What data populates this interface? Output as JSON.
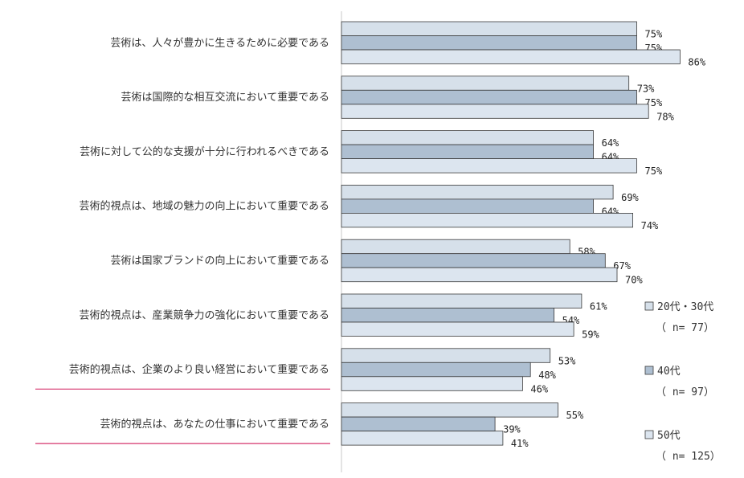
{
  "chart_data": {
    "type": "bar",
    "orientation": "horizontal",
    "categories": [
      "芸術は、人々が豊かに生きるために必要である",
      "芸術は国際的な相互交流において重要である",
      "芸術に対して公的な支援が十分に行われるべきである",
      "芸術的視点は、地域の魅力の向上において重要である",
      "芸術は国家ブランドの向上において重要である",
      "芸術的視点は、産業競争力の強化において重要である",
      "芸術的視点は、企業のより良い経営において重要である",
      "芸術的視点は、あなたの仕事において重要である"
    ],
    "highlighted_categories": [
      6,
      7
    ],
    "series": [
      {
        "name": "20代・30代",
        "sample": "（ n= 77）",
        "color": "#d6e0ea",
        "values": [
          75,
          73,
          64,
          69,
          58,
          61,
          53,
          55
        ]
      },
      {
        "name": "40代",
        "sample": "（ n= 97）",
        "color": "#aebfd1",
        "values": [
          75,
          75,
          64,
          64,
          67,
          54,
          48,
          39
        ]
      },
      {
        "name": "50代",
        "sample": "（ n= 125）",
        "color": "#dce5ef",
        "values": [
          86,
          78,
          75,
          74,
          70,
          59,
          46,
          41
        ]
      }
    ],
    "value_labels": [
      [
        "75%",
        "73%",
        "64%",
        "69%",
        "58%",
        "61%",
        "53%",
        "55%"
      ],
      [
        "75%",
        "75%",
        "64%",
        "64%",
        "67%",
        "54%",
        "48%",
        "39%"
      ],
      [
        "86%",
        "78%",
        "75%",
        "74%",
        "70%",
        "59%",
        "46%",
        "41%"
      ]
    ],
    "xlim": [
      0,
      100
    ],
    "grid": false,
    "legend_position": "right"
  },
  "colors": {
    "bar_stroke": "#3a3a3a",
    "axis": "#c8c8c8",
    "highlight_underline": "#d6336c"
  }
}
